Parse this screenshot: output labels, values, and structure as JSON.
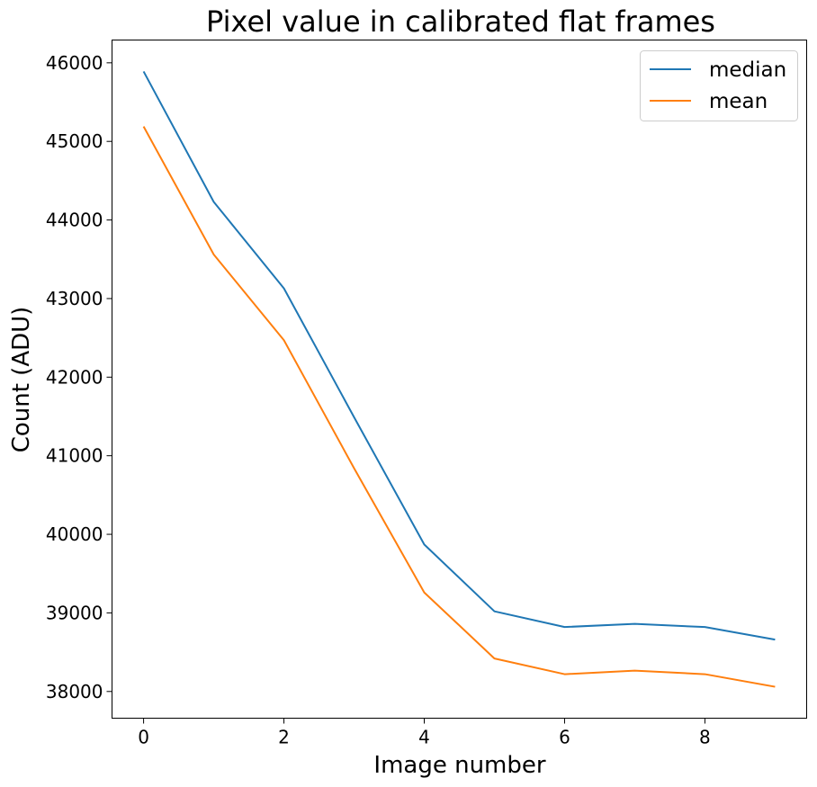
{
  "chart_data": {
    "type": "line",
    "title": "Pixel value in calibrated flat frames",
    "xlabel": "Image number",
    "ylabel": "Count (ADU)",
    "x": [
      0,
      1,
      2,
      3,
      4,
      5,
      6,
      7,
      8,
      9
    ],
    "series": [
      {
        "name": "median",
        "color": "#1f77b4",
        "values": [
          45890,
          44230,
          43130,
          41490,
          39870,
          39020,
          38820,
          38860,
          38820,
          38660
        ]
      },
      {
        "name": "mean",
        "color": "#ff7f0e",
        "values": [
          45190,
          43560,
          42470,
          40840,
          39260,
          38420,
          38220,
          38265,
          38220,
          38060
        ]
      }
    ],
    "xlim": [
      -0.45,
      9.45
    ],
    "ylim": [
      37660,
      46290
    ],
    "xticks": [
      0,
      2,
      4,
      6,
      8
    ],
    "yticks": [
      38000,
      39000,
      40000,
      41000,
      42000,
      43000,
      44000,
      45000,
      46000
    ],
    "grid": false,
    "legend_position": "top-right"
  }
}
